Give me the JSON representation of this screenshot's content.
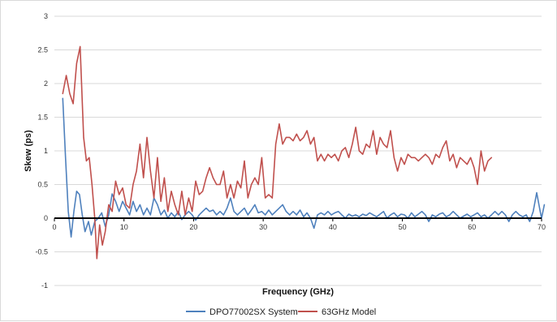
{
  "chart_data": {
    "type": "line",
    "title": "",
    "xlabel": "Frequency (GHz)",
    "ylabel": "Skew (ps)",
    "xlim": [
      0,
      70
    ],
    "ylim": [
      -1,
      3
    ],
    "x_ticks": [
      "0",
      "10",
      "20",
      "30",
      "40",
      "50",
      "60",
      "70"
    ],
    "y_ticks": [
      "3",
      "2.5",
      "2",
      "1.5",
      "1",
      "0.5",
      "0",
      "-0.5",
      "-1"
    ],
    "grid": "horizontal",
    "legend_position": "bottom",
    "series": [
      {
        "name": "DPO77002SX System",
        "color": "#4f81bd",
        "points": [
          [
            1.2,
            1.78
          ],
          [
            1.6,
            0.9
          ],
          [
            2.0,
            0.1
          ],
          [
            2.4,
            -0.28
          ],
          [
            2.8,
            0.1
          ],
          [
            3.2,
            0.4
          ],
          [
            3.6,
            0.35
          ],
          [
            4.0,
            0.05
          ],
          [
            4.4,
            -0.2
          ],
          [
            4.9,
            -0.05
          ],
          [
            5.3,
            -0.25
          ],
          [
            5.8,
            -0.05
          ],
          [
            6.3,
            0.0
          ],
          [
            6.8,
            0.08
          ],
          [
            7.3,
            -0.12
          ],
          [
            7.8,
            0.05
          ],
          [
            8.3,
            0.36
          ],
          [
            8.8,
            0.25
          ],
          [
            9.3,
            0.1
          ],
          [
            9.8,
            0.25
          ],
          [
            10.3,
            0.15
          ],
          [
            10.8,
            0.05
          ],
          [
            11.3,
            0.25
          ],
          [
            11.8,
            0.1
          ],
          [
            12.3,
            0.2
          ],
          [
            12.8,
            0.05
          ],
          [
            13.3,
            0.15
          ],
          [
            13.8,
            0.05
          ],
          [
            14.3,
            0.3
          ],
          [
            14.8,
            0.2
          ],
          [
            15.3,
            0.05
          ],
          [
            15.8,
            0.12
          ],
          [
            16.3,
            0.0
          ],
          [
            16.8,
            0.08
          ],
          [
            17.3,
            0.02
          ],
          [
            17.8,
            0.1
          ],
          [
            18.3,
            -0.02
          ],
          [
            18.8,
            0.05
          ],
          [
            19.3,
            0.1
          ],
          [
            19.8,
            0.05
          ],
          [
            20.3,
            -0.03
          ],
          [
            20.8,
            0.05
          ],
          [
            21.3,
            0.1
          ],
          [
            21.8,
            0.15
          ],
          [
            22.3,
            0.1
          ],
          [
            22.8,
            0.12
          ],
          [
            23.3,
            0.05
          ],
          [
            23.8,
            0.1
          ],
          [
            24.3,
            0.05
          ],
          [
            24.8,
            0.15
          ],
          [
            25.3,
            0.3
          ],
          [
            25.8,
            0.1
          ],
          [
            26.3,
            0.05
          ],
          [
            26.8,
            0.1
          ],
          [
            27.3,
            0.15
          ],
          [
            27.8,
            0.05
          ],
          [
            28.3,
            0.12
          ],
          [
            28.8,
            0.2
          ],
          [
            29.3,
            0.08
          ],
          [
            29.8,
            0.1
          ],
          [
            30.3,
            0.05
          ],
          [
            30.8,
            0.12
          ],
          [
            31.3,
            0.05
          ],
          [
            31.8,
            0.1
          ],
          [
            32.3,
            0.15
          ],
          [
            32.8,
            0.2
          ],
          [
            33.3,
            0.1
          ],
          [
            33.8,
            0.05
          ],
          [
            34.3,
            0.1
          ],
          [
            34.8,
            0.05
          ],
          [
            35.3,
            0.12
          ],
          [
            35.8,
            0.02
          ],
          [
            36.3,
            0.08
          ],
          [
            36.8,
            0.0
          ],
          [
            37.3,
            -0.15
          ],
          [
            37.8,
            0.05
          ],
          [
            38.3,
            0.08
          ],
          [
            38.8,
            0.05
          ],
          [
            39.3,
            0.1
          ],
          [
            39.8,
            0.05
          ],
          [
            40.3,
            0.08
          ],
          [
            40.8,
            0.1
          ],
          [
            41.3,
            0.05
          ],
          [
            41.8,
            0.0
          ],
          [
            42.3,
            0.06
          ],
          [
            42.8,
            0.03
          ],
          [
            43.3,
            0.05
          ],
          [
            43.8,
            0.02
          ],
          [
            44.3,
            0.06
          ],
          [
            44.8,
            0.04
          ],
          [
            45.3,
            0.08
          ],
          [
            45.8,
            0.05
          ],
          [
            46.3,
            0.02
          ],
          [
            46.8,
            0.06
          ],
          [
            47.3,
            0.1
          ],
          [
            47.8,
            0.0
          ],
          [
            48.3,
            0.05
          ],
          [
            48.8,
            0.08
          ],
          [
            49.3,
            0.02
          ],
          [
            49.8,
            0.06
          ],
          [
            50.3,
            0.05
          ],
          [
            50.8,
            0.0
          ],
          [
            51.3,
            0.08
          ],
          [
            51.8,
            0.02
          ],
          [
            52.3,
            0.06
          ],
          [
            52.8,
            0.1
          ],
          [
            53.3,
            0.05
          ],
          [
            53.8,
            -0.05
          ],
          [
            54.3,
            0.05
          ],
          [
            54.8,
            0.02
          ],
          [
            55.3,
            0.06
          ],
          [
            55.8,
            0.08
          ],
          [
            56.3,
            0.02
          ],
          [
            56.8,
            0.05
          ],
          [
            57.3,
            0.1
          ],
          [
            57.8,
            0.05
          ],
          [
            58.3,
            0.0
          ],
          [
            58.8,
            0.03
          ],
          [
            59.3,
            0.06
          ],
          [
            59.8,
            0.02
          ],
          [
            60.3,
            0.05
          ],
          [
            60.8,
            0.08
          ],
          [
            61.3,
            0.02
          ],
          [
            61.8,
            0.05
          ],
          [
            62.3,
            0.0
          ],
          [
            62.8,
            0.05
          ],
          [
            63.3,
            0.1
          ],
          [
            63.8,
            0.05
          ],
          [
            64.3,
            0.1
          ],
          [
            64.8,
            0.05
          ],
          [
            65.3,
            -0.05
          ],
          [
            65.8,
            0.05
          ],
          [
            66.3,
            0.1
          ],
          [
            66.8,
            0.05
          ],
          [
            67.3,
            0.02
          ],
          [
            67.8,
            0.05
          ],
          [
            68.3,
            -0.05
          ],
          [
            68.8,
            0.1
          ],
          [
            69.3,
            0.38
          ],
          [
            69.8,
            0.1
          ],
          [
            70.0,
            0.0
          ],
          [
            70.4,
            0.2
          ]
        ]
      },
      {
        "name": "63GHz Model",
        "color": "#c0504d",
        "points": [
          [
            1.2,
            1.85
          ],
          [
            1.7,
            2.12
          ],
          [
            2.2,
            1.85
          ],
          [
            2.7,
            1.7
          ],
          [
            3.2,
            2.3
          ],
          [
            3.7,
            2.55
          ],
          [
            4.2,
            1.2
          ],
          [
            4.6,
            0.85
          ],
          [
            5.0,
            0.9
          ],
          [
            5.4,
            0.5
          ],
          [
            5.8,
            0.0
          ],
          [
            6.1,
            -0.6
          ],
          [
            6.5,
            -0.1
          ],
          [
            6.9,
            -0.4
          ],
          [
            7.3,
            -0.2
          ],
          [
            7.8,
            0.2
          ],
          [
            8.3,
            0.1
          ],
          [
            8.8,
            0.55
          ],
          [
            9.3,
            0.35
          ],
          [
            9.8,
            0.45
          ],
          [
            10.3,
            0.2
          ],
          [
            10.8,
            0.15
          ],
          [
            11.3,
            0.5
          ],
          [
            11.8,
            0.7
          ],
          [
            12.3,
            1.1
          ],
          [
            12.8,
            0.6
          ],
          [
            13.3,
            1.2
          ],
          [
            13.8,
            0.7
          ],
          [
            14.3,
            0.3
          ],
          [
            14.8,
            0.9
          ],
          [
            15.3,
            0.25
          ],
          [
            15.8,
            0.6
          ],
          [
            16.3,
            0.1
          ],
          [
            16.8,
            0.4
          ],
          [
            17.3,
            0.2
          ],
          [
            17.8,
            0.05
          ],
          [
            18.3,
            0.4
          ],
          [
            18.8,
            0.05
          ],
          [
            19.3,
            0.3
          ],
          [
            19.8,
            0.1
          ],
          [
            20.3,
            0.55
          ],
          [
            20.8,
            0.35
          ],
          [
            21.3,
            0.4
          ],
          [
            21.8,
            0.6
          ],
          [
            22.3,
            0.75
          ],
          [
            22.8,
            0.6
          ],
          [
            23.3,
            0.5
          ],
          [
            23.8,
            0.5
          ],
          [
            24.3,
            0.7
          ],
          [
            24.8,
            0.3
          ],
          [
            25.3,
            0.5
          ],
          [
            25.8,
            0.3
          ],
          [
            26.3,
            0.55
          ],
          [
            26.8,
            0.45
          ],
          [
            27.3,
            0.85
          ],
          [
            27.8,
            0.3
          ],
          [
            28.3,
            0.5
          ],
          [
            28.8,
            0.6
          ],
          [
            29.3,
            0.5
          ],
          [
            29.8,
            0.9
          ],
          [
            30.3,
            0.3
          ],
          [
            30.8,
            0.35
          ],
          [
            31.3,
            0.3
          ],
          [
            31.8,
            1.1
          ],
          [
            32.3,
            1.4
          ],
          [
            32.8,
            1.1
          ],
          [
            33.3,
            1.2
          ],
          [
            33.8,
            1.2
          ],
          [
            34.3,
            1.15
          ],
          [
            34.8,
            1.25
          ],
          [
            35.3,
            1.15
          ],
          [
            35.8,
            1.2
          ],
          [
            36.3,
            1.3
          ],
          [
            36.8,
            1.1
          ],
          [
            37.3,
            1.2
          ],
          [
            37.8,
            0.85
          ],
          [
            38.3,
            0.95
          ],
          [
            38.8,
            0.85
          ],
          [
            39.3,
            0.95
          ],
          [
            39.8,
            0.9
          ],
          [
            40.3,
            0.95
          ],
          [
            40.8,
            0.85
          ],
          [
            41.3,
            1.0
          ],
          [
            41.8,
            1.05
          ],
          [
            42.3,
            0.9
          ],
          [
            42.8,
            1.1
          ],
          [
            43.3,
            1.35
          ],
          [
            43.8,
            1.0
          ],
          [
            44.3,
            0.95
          ],
          [
            44.8,
            1.1
          ],
          [
            45.3,
            1.05
          ],
          [
            45.8,
            1.3
          ],
          [
            46.3,
            0.95
          ],
          [
            46.8,
            1.2
          ],
          [
            47.3,
            1.1
          ],
          [
            47.8,
            1.05
          ],
          [
            48.3,
            1.3
          ],
          [
            48.8,
            0.9
          ],
          [
            49.3,
            0.7
          ],
          [
            49.8,
            0.9
          ],
          [
            50.3,
            0.8
          ],
          [
            50.8,
            0.95
          ],
          [
            51.3,
            0.9
          ],
          [
            51.8,
            0.9
          ],
          [
            52.3,
            0.85
          ],
          [
            52.8,
            0.9
          ],
          [
            53.3,
            0.95
          ],
          [
            53.8,
            0.9
          ],
          [
            54.3,
            0.8
          ],
          [
            54.8,
            0.95
          ],
          [
            55.3,
            0.9
          ],
          [
            55.8,
            1.05
          ],
          [
            56.3,
            1.15
          ],
          [
            56.8,
            0.85
          ],
          [
            57.3,
            0.95
          ],
          [
            57.8,
            0.75
          ],
          [
            58.3,
            0.9
          ],
          [
            58.8,
            0.85
          ],
          [
            59.3,
            0.8
          ],
          [
            59.8,
            0.9
          ],
          [
            60.3,
            0.75
          ],
          [
            60.8,
            0.5
          ],
          [
            61.3,
            1.0
          ],
          [
            61.8,
            0.7
          ],
          [
            62.3,
            0.85
          ],
          [
            62.8,
            0.9
          ]
        ]
      }
    ]
  }
}
